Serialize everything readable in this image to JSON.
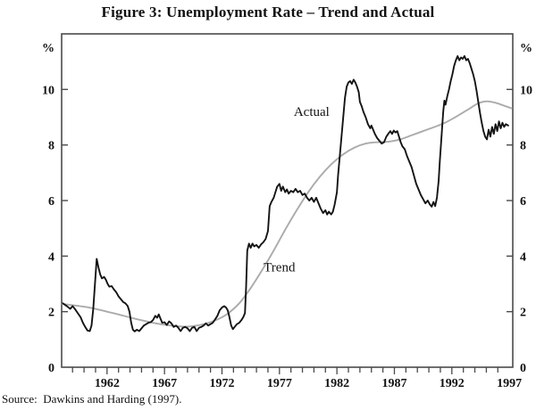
{
  "title": "Figure 3: Unemployment Rate – Trend and Actual",
  "source": "Source:  Dawkins and Harding (1997).",
  "colors": {
    "actual": "#141414",
    "trend": "#ababab",
    "frame": "#4a4a4a",
    "text": "#111111",
    "background": "#ffffff"
  },
  "chart_data": {
    "type": "line",
    "title": "Figure 3: Unemployment Rate – Trend and Actual",
    "ylabel_left": "%",
    "ylabel_right": "%",
    "ylim": [
      0,
      12
    ],
    "y_ticks": [
      0,
      2,
      4,
      6,
      8,
      10
    ],
    "x_range": [
      1958.05,
      1997.3
    ],
    "x_minor_tick_start": 1959,
    "x_minor_tick_end": 1996,
    "x_tick_labels": [
      1962,
      1967,
      1972,
      1977,
      1982,
      1987,
      1992,
      1997
    ],
    "grid": false,
    "legend": "inline-annotations",
    "annotations": [
      {
        "text": "Actual",
        "x": 1979.8,
        "y": 9.05
      },
      {
        "text": "Trend",
        "x": 1977.0,
        "y": 3.45
      }
    ],
    "series": [
      {
        "name": "Actual",
        "color": "#141414",
        "width": 1.9,
        "smooth": false,
        "points": [
          [
            1958.15,
            2.3
          ],
          [
            1958.5,
            2.2
          ],
          [
            1958.8,
            2.1
          ],
          [
            1959.0,
            2.2
          ],
          [
            1959.2,
            2.1
          ],
          [
            1959.45,
            1.95
          ],
          [
            1959.7,
            1.8
          ],
          [
            1959.9,
            1.6
          ],
          [
            1960.1,
            1.45
          ],
          [
            1960.3,
            1.32
          ],
          [
            1960.5,
            1.3
          ],
          [
            1960.65,
            1.5
          ],
          [
            1960.8,
            2.1
          ],
          [
            1960.95,
            3.0
          ],
          [
            1961.1,
            3.9
          ],
          [
            1961.25,
            3.6
          ],
          [
            1961.4,
            3.35
          ],
          [
            1961.55,
            3.2
          ],
          [
            1961.75,
            3.25
          ],
          [
            1961.9,
            3.15
          ],
          [
            1962.05,
            3.0
          ],
          [
            1962.2,
            2.9
          ],
          [
            1962.4,
            2.92
          ],
          [
            1962.6,
            2.8
          ],
          [
            1962.8,
            2.7
          ],
          [
            1963.0,
            2.55
          ],
          [
            1963.2,
            2.45
          ],
          [
            1963.4,
            2.35
          ],
          [
            1963.6,
            2.3
          ],
          [
            1963.8,
            2.2
          ],
          [
            1963.95,
            2.0
          ],
          [
            1964.1,
            1.6
          ],
          [
            1964.25,
            1.35
          ],
          [
            1964.4,
            1.29
          ],
          [
            1964.6,
            1.35
          ],
          [
            1964.8,
            1.3
          ],
          [
            1965.0,
            1.4
          ],
          [
            1965.2,
            1.5
          ],
          [
            1965.4,
            1.55
          ],
          [
            1965.6,
            1.6
          ],
          [
            1965.8,
            1.62
          ],
          [
            1966.0,
            1.7
          ],
          [
            1966.2,
            1.85
          ],
          [
            1966.35,
            1.78
          ],
          [
            1966.5,
            1.9
          ],
          [
            1966.65,
            1.75
          ],
          [
            1966.8,
            1.6
          ],
          [
            1967.0,
            1.62
          ],
          [
            1967.2,
            1.52
          ],
          [
            1967.4,
            1.65
          ],
          [
            1967.6,
            1.58
          ],
          [
            1967.8,
            1.45
          ],
          [
            1968.0,
            1.5
          ],
          [
            1968.2,
            1.42
          ],
          [
            1968.4,
            1.3
          ],
          [
            1968.6,
            1.42
          ],
          [
            1968.8,
            1.45
          ],
          [
            1969.0,
            1.4
          ],
          [
            1969.2,
            1.3
          ],
          [
            1969.4,
            1.42
          ],
          [
            1969.6,
            1.45
          ],
          [
            1969.8,
            1.3
          ],
          [
            1970.0,
            1.42
          ],
          [
            1970.2,
            1.45
          ],
          [
            1970.4,
            1.5
          ],
          [
            1970.6,
            1.58
          ],
          [
            1970.8,
            1.5
          ],
          [
            1971.0,
            1.55
          ],
          [
            1971.2,
            1.6
          ],
          [
            1971.4,
            1.72
          ],
          [
            1971.6,
            1.85
          ],
          [
            1971.8,
            2.05
          ],
          [
            1972.0,
            2.15
          ],
          [
            1972.2,
            2.2
          ],
          [
            1972.35,
            2.15
          ],
          [
            1972.5,
            2.05
          ],
          [
            1972.65,
            1.8
          ],
          [
            1972.8,
            1.5
          ],
          [
            1972.95,
            1.37
          ],
          [
            1973.1,
            1.45
          ],
          [
            1973.3,
            1.55
          ],
          [
            1973.5,
            1.6
          ],
          [
            1973.7,
            1.7
          ],
          [
            1973.85,
            1.8
          ],
          [
            1974.0,
            1.95
          ],
          [
            1974.1,
            2.9
          ],
          [
            1974.2,
            4.2
          ],
          [
            1974.35,
            4.45
          ],
          [
            1974.5,
            4.3
          ],
          [
            1974.65,
            4.45
          ],
          [
            1974.8,
            4.35
          ],
          [
            1975.0,
            4.4
          ],
          [
            1975.2,
            4.3
          ],
          [
            1975.4,
            4.42
          ],
          [
            1975.6,
            4.5
          ],
          [
            1975.8,
            4.62
          ],
          [
            1976.0,
            4.9
          ],
          [
            1976.15,
            5.8
          ],
          [
            1976.3,
            5.95
          ],
          [
            1976.5,
            6.1
          ],
          [
            1976.65,
            6.3
          ],
          [
            1976.8,
            6.5
          ],
          [
            1977.0,
            6.6
          ],
          [
            1977.15,
            6.35
          ],
          [
            1977.3,
            6.5
          ],
          [
            1977.5,
            6.3
          ],
          [
            1977.65,
            6.4
          ],
          [
            1977.8,
            6.25
          ],
          [
            1978.0,
            6.35
          ],
          [
            1978.2,
            6.3
          ],
          [
            1978.4,
            6.42
          ],
          [
            1978.6,
            6.3
          ],
          [
            1978.8,
            6.35
          ],
          [
            1979.0,
            6.2
          ],
          [
            1979.2,
            6.25
          ],
          [
            1979.4,
            6.1
          ],
          [
            1979.6,
            6.0
          ],
          [
            1979.8,
            6.1
          ],
          [
            1980.0,
            5.95
          ],
          [
            1980.2,
            6.1
          ],
          [
            1980.4,
            5.9
          ],
          [
            1980.6,
            5.7
          ],
          [
            1980.8,
            5.55
          ],
          [
            1981.0,
            5.65
          ],
          [
            1981.15,
            5.5
          ],
          [
            1981.3,
            5.6
          ],
          [
            1981.5,
            5.5
          ],
          [
            1981.65,
            5.6
          ],
          [
            1981.8,
            5.85
          ],
          [
            1982.0,
            6.3
          ],
          [
            1982.1,
            6.9
          ],
          [
            1982.25,
            7.6
          ],
          [
            1982.4,
            8.3
          ],
          [
            1982.55,
            9.0
          ],
          [
            1982.7,
            9.7
          ],
          [
            1982.85,
            10.1
          ],
          [
            1983.0,
            10.25
          ],
          [
            1983.15,
            10.3
          ],
          [
            1983.3,
            10.2
          ],
          [
            1983.45,
            10.35
          ],
          [
            1983.6,
            10.25
          ],
          [
            1983.75,
            10.1
          ],
          [
            1983.9,
            9.9
          ],
          [
            1984.0,
            9.55
          ],
          [
            1984.15,
            9.4
          ],
          [
            1984.3,
            9.2
          ],
          [
            1984.5,
            9.0
          ],
          [
            1984.7,
            8.75
          ],
          [
            1984.9,
            8.6
          ],
          [
            1985.0,
            8.7
          ],
          [
            1985.15,
            8.55
          ],
          [
            1985.3,
            8.4
          ],
          [
            1985.5,
            8.25
          ],
          [
            1985.7,
            8.15
          ],
          [
            1985.9,
            8.05
          ],
          [
            1986.1,
            8.1
          ],
          [
            1986.3,
            8.3
          ],
          [
            1986.5,
            8.42
          ],
          [
            1986.65,
            8.5
          ],
          [
            1986.8,
            8.4
          ],
          [
            1986.95,
            8.52
          ],
          [
            1987.1,
            8.45
          ],
          [
            1987.25,
            8.5
          ],
          [
            1987.4,
            8.3
          ],
          [
            1987.55,
            8.1
          ],
          [
            1987.7,
            7.95
          ],
          [
            1987.9,
            7.85
          ],
          [
            1988.1,
            7.6
          ],
          [
            1988.3,
            7.4
          ],
          [
            1988.5,
            7.2
          ],
          [
            1988.7,
            6.9
          ],
          [
            1988.9,
            6.6
          ],
          [
            1989.1,
            6.4
          ],
          [
            1989.3,
            6.2
          ],
          [
            1989.5,
            6.05
          ],
          [
            1989.7,
            5.9
          ],
          [
            1989.9,
            6.0
          ],
          [
            1990.1,
            5.85
          ],
          [
            1990.25,
            5.78
          ],
          [
            1990.4,
            5.95
          ],
          [
            1990.55,
            5.8
          ],
          [
            1990.7,
            6.1
          ],
          [
            1990.85,
            6.7
          ],
          [
            1990.95,
            7.4
          ],
          [
            1991.05,
            8.0
          ],
          [
            1991.15,
            8.6
          ],
          [
            1991.25,
            9.2
          ],
          [
            1991.35,
            9.6
          ],
          [
            1991.45,
            9.45
          ],
          [
            1991.6,
            9.75
          ],
          [
            1991.75,
            10.0
          ],
          [
            1991.9,
            10.3
          ],
          [
            1992.05,
            10.55
          ],
          [
            1992.2,
            10.85
          ],
          [
            1992.35,
            11.05
          ],
          [
            1992.5,
            11.2
          ],
          [
            1992.65,
            11.05
          ],
          [
            1992.8,
            11.15
          ],
          [
            1992.95,
            11.1
          ],
          [
            1993.1,
            11.2
          ],
          [
            1993.25,
            11.05
          ],
          [
            1993.4,
            11.1
          ],
          [
            1993.55,
            10.95
          ],
          [
            1993.7,
            10.75
          ],
          [
            1993.85,
            10.55
          ],
          [
            1994.0,
            10.3
          ],
          [
            1994.15,
            9.95
          ],
          [
            1994.3,
            9.55
          ],
          [
            1994.45,
            9.15
          ],
          [
            1994.6,
            8.8
          ],
          [
            1994.75,
            8.5
          ],
          [
            1994.9,
            8.3
          ],
          [
            1995.05,
            8.2
          ],
          [
            1995.2,
            8.55
          ],
          [
            1995.35,
            8.3
          ],
          [
            1995.5,
            8.65
          ],
          [
            1995.65,
            8.4
          ],
          [
            1995.8,
            8.75
          ],
          [
            1995.95,
            8.5
          ],
          [
            1996.1,
            8.85
          ],
          [
            1996.25,
            8.6
          ],
          [
            1996.4,
            8.8
          ],
          [
            1996.55,
            8.65
          ],
          [
            1996.7,
            8.75
          ],
          [
            1996.9,
            8.7
          ]
        ]
      },
      {
        "name": "Trend",
        "color": "#ababab",
        "width": 1.9,
        "smooth": true,
        "points": [
          [
            1958.1,
            2.28
          ],
          [
            1960.0,
            2.18
          ],
          [
            1961.0,
            2.1
          ],
          [
            1962.0,
            2.0
          ],
          [
            1963.0,
            1.9
          ],
          [
            1964.0,
            1.79
          ],
          [
            1965.0,
            1.69
          ],
          [
            1966.0,
            1.6
          ],
          [
            1967.0,
            1.53
          ],
          [
            1968.0,
            1.48
          ],
          [
            1968.8,
            1.46
          ],
          [
            1969.5,
            1.48
          ],
          [
            1970.5,
            1.56
          ],
          [
            1971.5,
            1.7
          ],
          [
            1972.5,
            1.93
          ],
          [
            1973.5,
            2.3
          ],
          [
            1974.5,
            2.85
          ],
          [
            1975.5,
            3.5
          ],
          [
            1976.5,
            4.2
          ],
          [
            1977.5,
            4.95
          ],
          [
            1978.5,
            5.65
          ],
          [
            1979.5,
            6.3
          ],
          [
            1980.5,
            6.85
          ],
          [
            1981.5,
            7.3
          ],
          [
            1982.5,
            7.65
          ],
          [
            1983.5,
            7.9
          ],
          [
            1984.5,
            8.05
          ],
          [
            1985.5,
            8.1
          ],
          [
            1986.5,
            8.12
          ],
          [
            1987.5,
            8.2
          ],
          [
            1988.5,
            8.35
          ],
          [
            1989.5,
            8.5
          ],
          [
            1990.5,
            8.65
          ],
          [
            1991.5,
            8.82
          ],
          [
            1992.5,
            9.05
          ],
          [
            1993.5,
            9.3
          ],
          [
            1994.3,
            9.5
          ],
          [
            1995.0,
            9.57
          ],
          [
            1995.8,
            9.52
          ],
          [
            1996.5,
            9.42
          ],
          [
            1997.2,
            9.32
          ]
        ]
      }
    ]
  }
}
